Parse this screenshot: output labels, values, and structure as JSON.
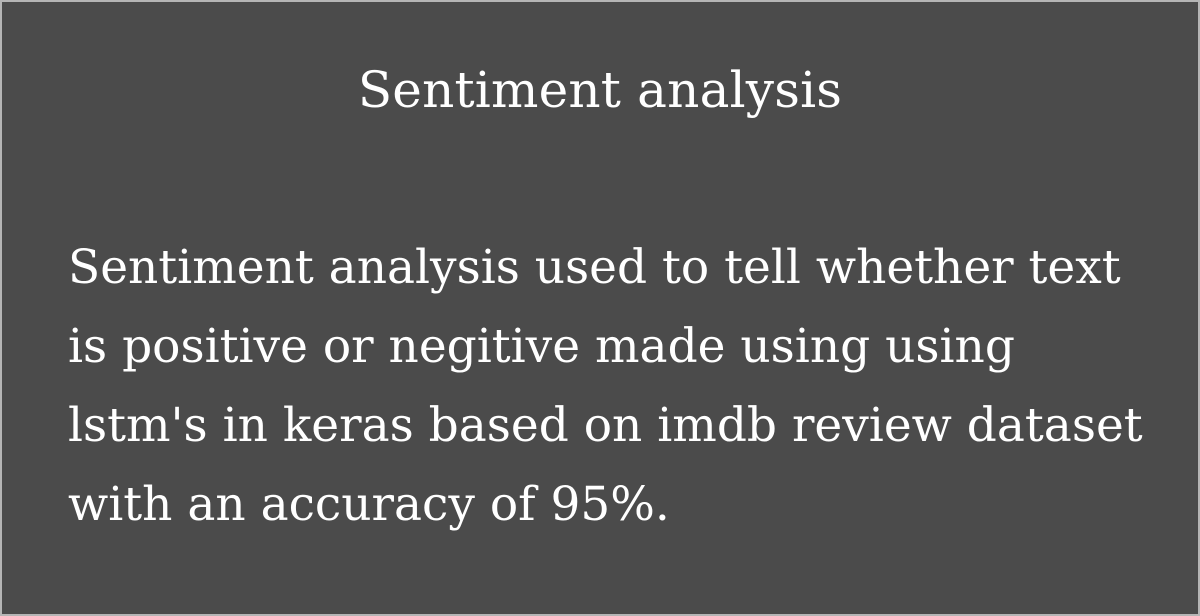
{
  "card": {
    "title": "Sentiment analysis",
    "description": "Sentiment analysis used to tell whether text is positive or negitive made using using lstm's in keras based on imdb review dataset with an accuracy of 95%."
  },
  "colors": {
    "background": "#4b4b4b",
    "border": "#b5b5b5",
    "text": "#ffffff"
  }
}
